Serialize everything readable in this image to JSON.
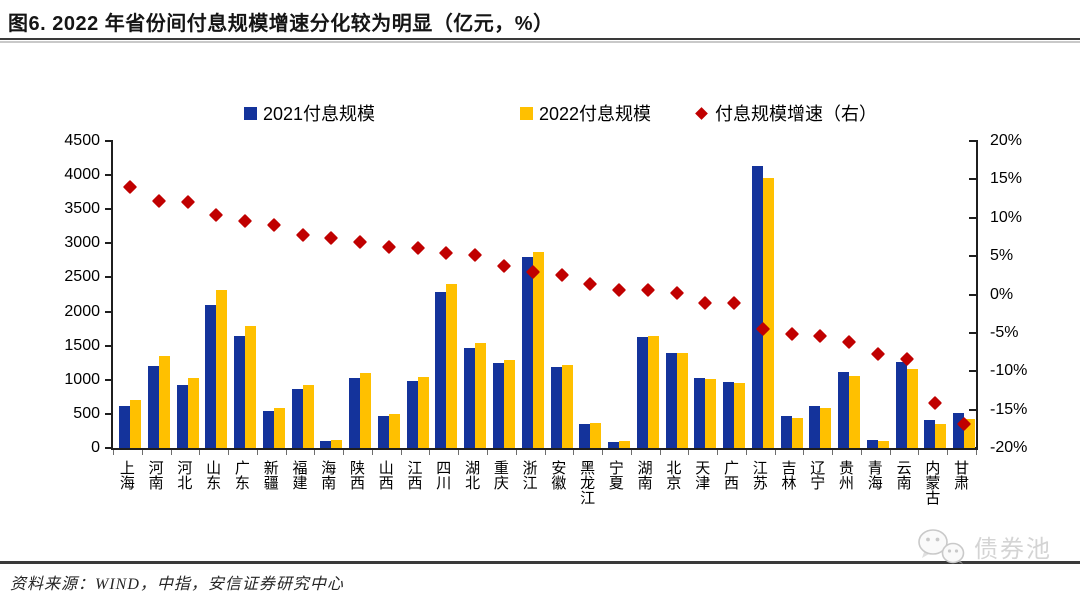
{
  "figure": {
    "title": "图6. 2022 年省份间付息规模增速分化较为明显（亿元，%）",
    "source": "资料来源：WIND，中指，安信证券研究中心",
    "watermark_text": "债券池"
  },
  "chart_data": {
    "type": "bar",
    "subtype": "dual-axis grouped bars with diamond scatter overlay (right axis)",
    "title": "2022 年省份间付息规模增速分化较为明显（亿元，%）",
    "grid": false,
    "legend_position": "top",
    "categories": [
      "上海",
      "河南",
      "河北",
      "山东",
      "广东",
      "新疆",
      "福建",
      "海南",
      "陕西",
      "山西",
      "江西",
      "四川",
      "湖北",
      "重庆",
      "浙江",
      "安徽",
      "黑龙江",
      "宁夏",
      "湖南",
      "北京",
      "天津",
      "广西",
      "江苏",
      "吉林",
      "辽宁",
      "贵州",
      "青海",
      "云南",
      "内蒙古",
      "甘肃"
    ],
    "series": [
      {
        "name": "2021付息规模",
        "type": "bar",
        "axis": "left",
        "color": "#14339B",
        "values": [
          615,
          1200,
          920,
          2100,
          1640,
          540,
          865,
          108,
          1030,
          465,
          985,
          2290,
          1470,
          1245,
          2800,
          1185,
          355,
          95,
          1630,
          1395,
          1030,
          970,
          4140,
          470,
          620,
          1120,
          118,
          1265,
          410,
          510
        ]
      },
      {
        "name": "2022付息规模",
        "type": "bar",
        "axis": "left",
        "color": "#FFC000",
        "values": [
          700,
          1345,
          1030,
          2320,
          1795,
          590,
          930,
          116,
          1100,
          495,
          1045,
          2410,
          1545,
          1290,
          2880,
          1215,
          360,
          96,
          1638,
          1398,
          1018,
          958,
          3955,
          446,
          588,
          1050,
          109,
          1157,
          352,
          425
        ]
      },
      {
        "name": "付息规模增速（右）",
        "type": "scatter",
        "marker": "diamond",
        "axis": "right",
        "color": "#C00000",
        "values": [
          14.0,
          12.2,
          12.1,
          10.4,
          9.6,
          9.0,
          7.8,
          7.4,
          6.9,
          6.2,
          6.1,
          5.4,
          5.2,
          3.7,
          2.9,
          2.5,
          1.4,
          0.6,
          0.6,
          0.2,
          -1.1,
          -1.1,
          -4.5,
          -5.1,
          -5.4,
          -6.2,
          -7.8,
          -8.4,
          -14.1,
          -16.9
        ]
      }
    ],
    "left_axis": {
      "min": 0,
      "max": 4500,
      "step": 500,
      "tick_labels": [
        "4500",
        "4000",
        "3500",
        "3000",
        "2500",
        "2000",
        "1500",
        "1000",
        "500",
        "0"
      ]
    },
    "right_axis": {
      "min": -20,
      "max": 20,
      "step": 5,
      "tick_labels": [
        "20%",
        "15%",
        "10%",
        "5%",
        "0%",
        "-5%",
        "-10%",
        "-15%",
        "-20%"
      ]
    }
  }
}
